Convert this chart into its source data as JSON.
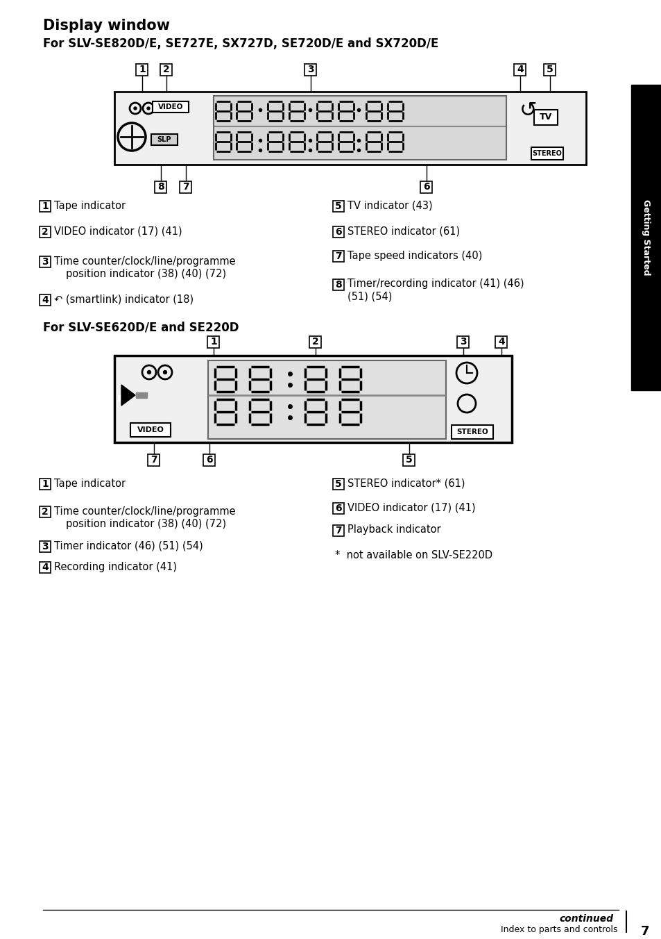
{
  "title": "Display window",
  "subtitle1": "For SLV-SE820D/E, SE727E, SX727D, SE720D/E and SX720D/E",
  "subtitle2": "For SLV-SE620D/E and SE220D",
  "bg_color": "#ffffff",
  "tab_text": "Getting Started",
  "page_num": "7",
  "footer_text": "Index to parts and controls",
  "continued_text": "continued",
  "smartlink_char": "↶"
}
